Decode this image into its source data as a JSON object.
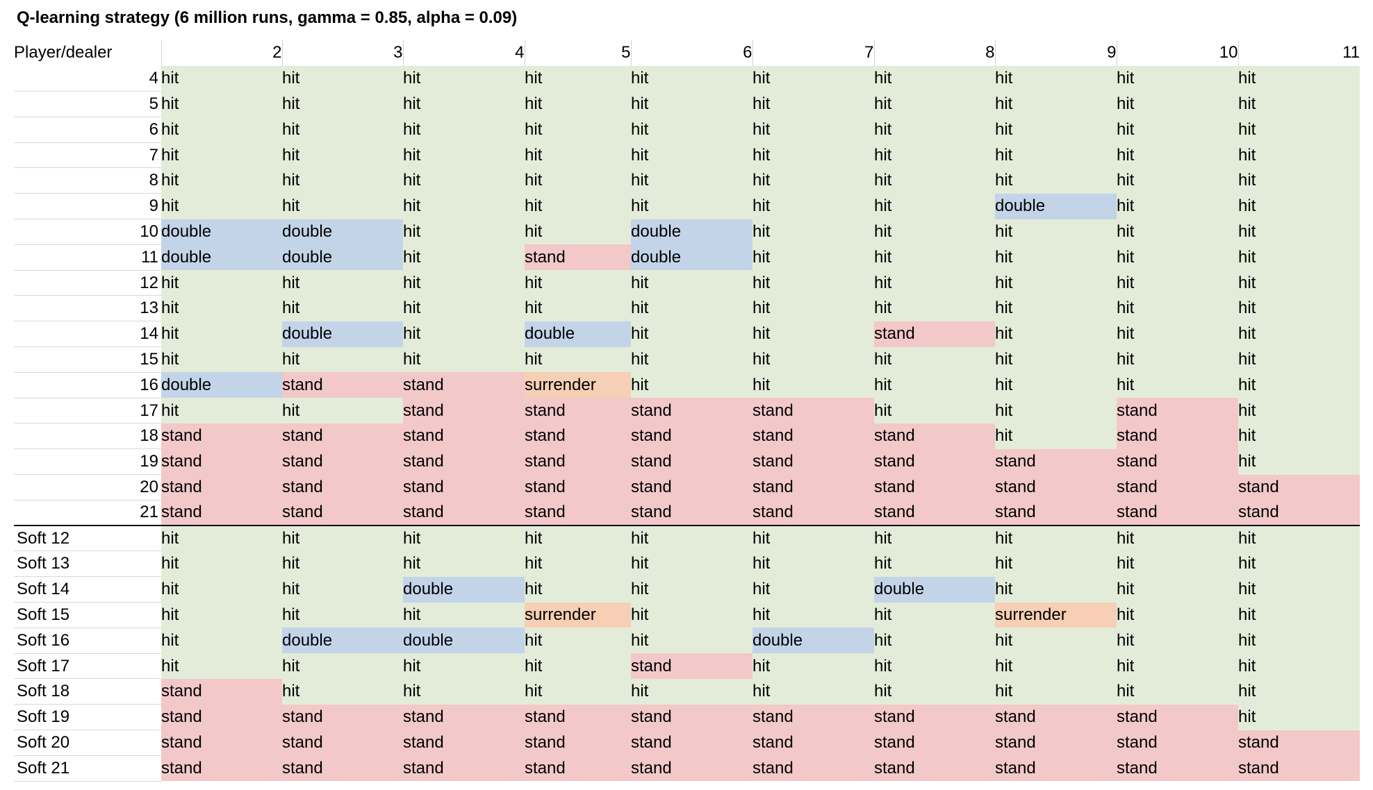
{
  "title": "Q-learning strategy (6 million runs, gamma = 0.85, alpha = 0.09)",
  "corner_label": "Player/dealer",
  "dealer_columns": [
    "2",
    "3",
    "4",
    "5",
    "6",
    "7",
    "8",
    "9",
    "10",
    "11"
  ],
  "colors": {
    "hit": "#e3ecd9",
    "stand": "#f3c8c8",
    "double": "#c3d4e9",
    "surrender": "#f6cfb5"
  },
  "hard_rows": [
    {
      "label": "4",
      "actions": [
        "hit",
        "hit",
        "hit",
        "hit",
        "hit",
        "hit",
        "hit",
        "hit",
        "hit",
        "hit"
      ]
    },
    {
      "label": "5",
      "actions": [
        "hit",
        "hit",
        "hit",
        "hit",
        "hit",
        "hit",
        "hit",
        "hit",
        "hit",
        "hit"
      ]
    },
    {
      "label": "6",
      "actions": [
        "hit",
        "hit",
        "hit",
        "hit",
        "hit",
        "hit",
        "hit",
        "hit",
        "hit",
        "hit"
      ]
    },
    {
      "label": "7",
      "actions": [
        "hit",
        "hit",
        "hit",
        "hit",
        "hit",
        "hit",
        "hit",
        "hit",
        "hit",
        "hit"
      ]
    },
    {
      "label": "8",
      "actions": [
        "hit",
        "hit",
        "hit",
        "hit",
        "hit",
        "hit",
        "hit",
        "hit",
        "hit",
        "hit"
      ]
    },
    {
      "label": "9",
      "actions": [
        "hit",
        "hit",
        "hit",
        "hit",
        "hit",
        "hit",
        "hit",
        "double",
        "hit",
        "hit"
      ]
    },
    {
      "label": "10",
      "actions": [
        "double",
        "double",
        "hit",
        "hit",
        "double",
        "hit",
        "hit",
        "hit",
        "hit",
        "hit"
      ]
    },
    {
      "label": "11",
      "actions": [
        "double",
        "double",
        "hit",
        "stand",
        "double",
        "hit",
        "hit",
        "hit",
        "hit",
        "hit"
      ]
    },
    {
      "label": "12",
      "actions": [
        "hit",
        "hit",
        "hit",
        "hit",
        "hit",
        "hit",
        "hit",
        "hit",
        "hit",
        "hit"
      ]
    },
    {
      "label": "13",
      "actions": [
        "hit",
        "hit",
        "hit",
        "hit",
        "hit",
        "hit",
        "hit",
        "hit",
        "hit",
        "hit"
      ]
    },
    {
      "label": "14",
      "actions": [
        "hit",
        "double",
        "hit",
        "double",
        "hit",
        "hit",
        "stand",
        "hit",
        "hit",
        "hit"
      ]
    },
    {
      "label": "15",
      "actions": [
        "hit",
        "hit",
        "hit",
        "hit",
        "hit",
        "hit",
        "hit",
        "hit",
        "hit",
        "hit"
      ]
    },
    {
      "label": "16",
      "actions": [
        "double",
        "stand",
        "stand",
        "surrender",
        "hit",
        "hit",
        "hit",
        "hit",
        "hit",
        "hit"
      ]
    },
    {
      "label": "17",
      "actions": [
        "hit",
        "hit",
        "stand",
        "stand",
        "stand",
        "stand",
        "hit",
        "hit",
        "stand",
        "hit"
      ]
    },
    {
      "label": "18",
      "actions": [
        "stand",
        "stand",
        "stand",
        "stand",
        "stand",
        "stand",
        "stand",
        "hit",
        "stand",
        "hit"
      ]
    },
    {
      "label": "19",
      "actions": [
        "stand",
        "stand",
        "stand",
        "stand",
        "stand",
        "stand",
        "stand",
        "stand",
        "stand",
        "hit"
      ]
    },
    {
      "label": "20",
      "actions": [
        "stand",
        "stand",
        "stand",
        "stand",
        "stand",
        "stand",
        "stand",
        "stand",
        "stand",
        "stand"
      ]
    },
    {
      "label": "21",
      "actions": [
        "stand",
        "stand",
        "stand",
        "stand",
        "stand",
        "stand",
        "stand",
        "stand",
        "stand",
        "stand"
      ]
    }
  ],
  "soft_rows": [
    {
      "label": "Soft 12",
      "actions": [
        "hit",
        "hit",
        "hit",
        "hit",
        "hit",
        "hit",
        "hit",
        "hit",
        "hit",
        "hit"
      ]
    },
    {
      "label": "Soft 13",
      "actions": [
        "hit",
        "hit",
        "hit",
        "hit",
        "hit",
        "hit",
        "hit",
        "hit",
        "hit",
        "hit"
      ]
    },
    {
      "label": "Soft 14",
      "actions": [
        "hit",
        "hit",
        "double",
        "hit",
        "hit",
        "hit",
        "double",
        "hit",
        "hit",
        "hit"
      ]
    },
    {
      "label": "Soft 15",
      "actions": [
        "hit",
        "hit",
        "hit",
        "surrender",
        "hit",
        "hit",
        "hit",
        "surrender",
        "hit",
        "hit"
      ]
    },
    {
      "label": "Soft 16",
      "actions": [
        "hit",
        "double",
        "double",
        "hit",
        "hit",
        "double",
        "hit",
        "hit",
        "hit",
        "hit"
      ]
    },
    {
      "label": "Soft 17",
      "actions": [
        "hit",
        "hit",
        "hit",
        "hit",
        "stand",
        "hit",
        "hit",
        "hit",
        "hit",
        "hit"
      ]
    },
    {
      "label": "Soft 18",
      "actions": [
        "stand",
        "hit",
        "hit",
        "hit",
        "hit",
        "hit",
        "hit",
        "hit",
        "hit",
        "hit"
      ]
    },
    {
      "label": "Soft 19",
      "actions": [
        "stand",
        "stand",
        "stand",
        "stand",
        "stand",
        "stand",
        "stand",
        "stand",
        "stand",
        "hit"
      ]
    },
    {
      "label": "Soft 20",
      "actions": [
        "stand",
        "stand",
        "stand",
        "stand",
        "stand",
        "stand",
        "stand",
        "stand",
        "stand",
        "stand"
      ]
    },
    {
      "label": "Soft 21",
      "actions": [
        "stand",
        "stand",
        "stand",
        "stand",
        "stand",
        "stand",
        "stand",
        "stand",
        "stand",
        "stand"
      ]
    }
  ]
}
